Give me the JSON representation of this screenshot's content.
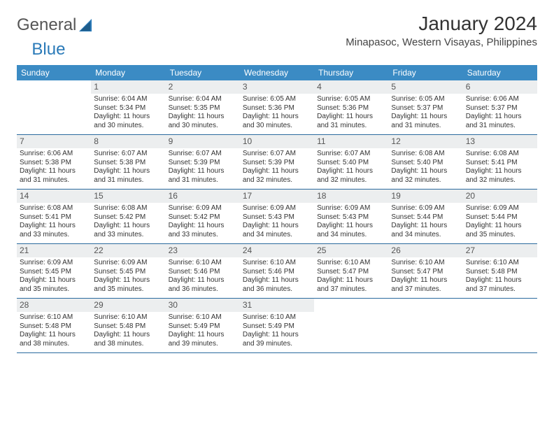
{
  "logo": {
    "text1": "General",
    "text2": "Blue"
  },
  "title": "January 2024",
  "location": "Minapasoc, Western Visayas, Philippines",
  "colors": {
    "header_bg": "#3b8bc4",
    "header_text": "#ffffff",
    "daynum_bg": "#eceeef",
    "week_border": "#2a6a9e",
    "logo_blue": "#2a7ab8"
  },
  "dow": [
    "Sunday",
    "Monday",
    "Tuesday",
    "Wednesday",
    "Thursday",
    "Friday",
    "Saturday"
  ],
  "weeks": [
    [
      {
        "n": "",
        "sr": "",
        "ss": "",
        "dl": ""
      },
      {
        "n": "1",
        "sr": "Sunrise: 6:04 AM",
        "ss": "Sunset: 5:34 PM",
        "dl": "Daylight: 11 hours and 30 minutes."
      },
      {
        "n": "2",
        "sr": "Sunrise: 6:04 AM",
        "ss": "Sunset: 5:35 PM",
        "dl": "Daylight: 11 hours and 30 minutes."
      },
      {
        "n": "3",
        "sr": "Sunrise: 6:05 AM",
        "ss": "Sunset: 5:36 PM",
        "dl": "Daylight: 11 hours and 30 minutes."
      },
      {
        "n": "4",
        "sr": "Sunrise: 6:05 AM",
        "ss": "Sunset: 5:36 PM",
        "dl": "Daylight: 11 hours and 31 minutes."
      },
      {
        "n": "5",
        "sr": "Sunrise: 6:05 AM",
        "ss": "Sunset: 5:37 PM",
        "dl": "Daylight: 11 hours and 31 minutes."
      },
      {
        "n": "6",
        "sr": "Sunrise: 6:06 AM",
        "ss": "Sunset: 5:37 PM",
        "dl": "Daylight: 11 hours and 31 minutes."
      }
    ],
    [
      {
        "n": "7",
        "sr": "Sunrise: 6:06 AM",
        "ss": "Sunset: 5:38 PM",
        "dl": "Daylight: 11 hours and 31 minutes."
      },
      {
        "n": "8",
        "sr": "Sunrise: 6:07 AM",
        "ss": "Sunset: 5:38 PM",
        "dl": "Daylight: 11 hours and 31 minutes."
      },
      {
        "n": "9",
        "sr": "Sunrise: 6:07 AM",
        "ss": "Sunset: 5:39 PM",
        "dl": "Daylight: 11 hours and 31 minutes."
      },
      {
        "n": "10",
        "sr": "Sunrise: 6:07 AM",
        "ss": "Sunset: 5:39 PM",
        "dl": "Daylight: 11 hours and 32 minutes."
      },
      {
        "n": "11",
        "sr": "Sunrise: 6:07 AM",
        "ss": "Sunset: 5:40 PM",
        "dl": "Daylight: 11 hours and 32 minutes."
      },
      {
        "n": "12",
        "sr": "Sunrise: 6:08 AM",
        "ss": "Sunset: 5:40 PM",
        "dl": "Daylight: 11 hours and 32 minutes."
      },
      {
        "n": "13",
        "sr": "Sunrise: 6:08 AM",
        "ss": "Sunset: 5:41 PM",
        "dl": "Daylight: 11 hours and 32 minutes."
      }
    ],
    [
      {
        "n": "14",
        "sr": "Sunrise: 6:08 AM",
        "ss": "Sunset: 5:41 PM",
        "dl": "Daylight: 11 hours and 33 minutes."
      },
      {
        "n": "15",
        "sr": "Sunrise: 6:08 AM",
        "ss": "Sunset: 5:42 PM",
        "dl": "Daylight: 11 hours and 33 minutes."
      },
      {
        "n": "16",
        "sr": "Sunrise: 6:09 AM",
        "ss": "Sunset: 5:42 PM",
        "dl": "Daylight: 11 hours and 33 minutes."
      },
      {
        "n": "17",
        "sr": "Sunrise: 6:09 AM",
        "ss": "Sunset: 5:43 PM",
        "dl": "Daylight: 11 hours and 34 minutes."
      },
      {
        "n": "18",
        "sr": "Sunrise: 6:09 AM",
        "ss": "Sunset: 5:43 PM",
        "dl": "Daylight: 11 hours and 34 minutes."
      },
      {
        "n": "19",
        "sr": "Sunrise: 6:09 AM",
        "ss": "Sunset: 5:44 PM",
        "dl": "Daylight: 11 hours and 34 minutes."
      },
      {
        "n": "20",
        "sr": "Sunrise: 6:09 AM",
        "ss": "Sunset: 5:44 PM",
        "dl": "Daylight: 11 hours and 35 minutes."
      }
    ],
    [
      {
        "n": "21",
        "sr": "Sunrise: 6:09 AM",
        "ss": "Sunset: 5:45 PM",
        "dl": "Daylight: 11 hours and 35 minutes."
      },
      {
        "n": "22",
        "sr": "Sunrise: 6:09 AM",
        "ss": "Sunset: 5:45 PM",
        "dl": "Daylight: 11 hours and 35 minutes."
      },
      {
        "n": "23",
        "sr": "Sunrise: 6:10 AM",
        "ss": "Sunset: 5:46 PM",
        "dl": "Daylight: 11 hours and 36 minutes."
      },
      {
        "n": "24",
        "sr": "Sunrise: 6:10 AM",
        "ss": "Sunset: 5:46 PM",
        "dl": "Daylight: 11 hours and 36 minutes."
      },
      {
        "n": "25",
        "sr": "Sunrise: 6:10 AM",
        "ss": "Sunset: 5:47 PM",
        "dl": "Daylight: 11 hours and 37 minutes."
      },
      {
        "n": "26",
        "sr": "Sunrise: 6:10 AM",
        "ss": "Sunset: 5:47 PM",
        "dl": "Daylight: 11 hours and 37 minutes."
      },
      {
        "n": "27",
        "sr": "Sunrise: 6:10 AM",
        "ss": "Sunset: 5:48 PM",
        "dl": "Daylight: 11 hours and 37 minutes."
      }
    ],
    [
      {
        "n": "28",
        "sr": "Sunrise: 6:10 AM",
        "ss": "Sunset: 5:48 PM",
        "dl": "Daylight: 11 hours and 38 minutes."
      },
      {
        "n": "29",
        "sr": "Sunrise: 6:10 AM",
        "ss": "Sunset: 5:48 PM",
        "dl": "Daylight: 11 hours and 38 minutes."
      },
      {
        "n": "30",
        "sr": "Sunrise: 6:10 AM",
        "ss": "Sunset: 5:49 PM",
        "dl": "Daylight: 11 hours and 39 minutes."
      },
      {
        "n": "31",
        "sr": "Sunrise: 6:10 AM",
        "ss": "Sunset: 5:49 PM",
        "dl": "Daylight: 11 hours and 39 minutes."
      },
      {
        "n": "",
        "sr": "",
        "ss": "",
        "dl": ""
      },
      {
        "n": "",
        "sr": "",
        "ss": "",
        "dl": ""
      },
      {
        "n": "",
        "sr": "",
        "ss": "",
        "dl": ""
      }
    ]
  ]
}
